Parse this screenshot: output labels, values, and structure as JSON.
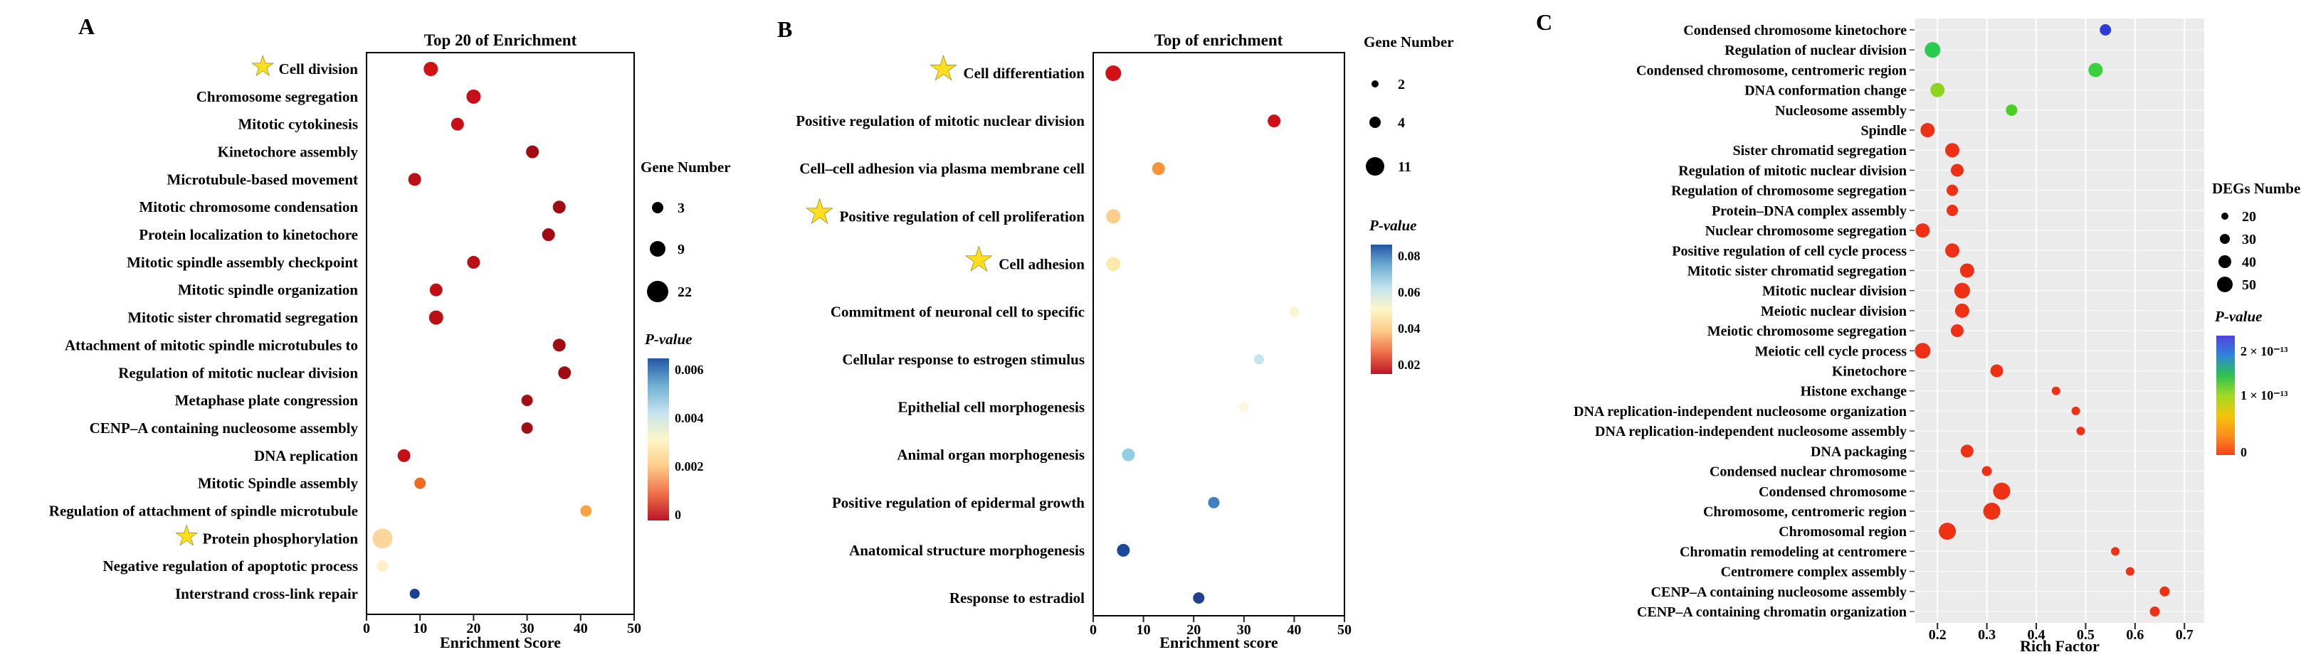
{
  "chart_data": [
    {
      "panel_label": "A",
      "type": "bubble",
      "title": "Top 20 of Enrichment",
      "xlabel": "Enrichment Score",
      "x_range": [
        0,
        50
      ],
      "x_ticks": [
        "0",
        "10",
        "20",
        "30",
        "40",
        "50"
      ],
      "size_legend": {
        "title": "Gene Number",
        "items": [
          {
            "label": "3",
            "r": 8
          },
          {
            "label": "9",
            "r": 11
          },
          {
            "label": "22",
            "r": 15
          }
        ]
      },
      "color_legend": {
        "title": "P-value",
        "ticks": [
          "0.006",
          "0.004",
          "0.002",
          "0"
        ],
        "gradient": [
          "#2356a6",
          "#6fb0d2",
          "#c3e3ee",
          "#fdf6c8",
          "#fdcc8a",
          "#f0704a",
          "#bb1526"
        ]
      },
      "points": [
        {
          "label": "Cell division",
          "star": true,
          "x": 12,
          "r": 10,
          "color": "#d01216"
        },
        {
          "label": "Chromosome segregation",
          "x": 20,
          "r": 10,
          "color": "#c60f16"
        },
        {
          "label": "Mitotic cytokinesis",
          "x": 17,
          "r": 9,
          "color": "#c60f16"
        },
        {
          "label": "Kinetochore assembly",
          "x": 31,
          "r": 9,
          "color": "#9f0d13"
        },
        {
          "label": "Microtubule-based movement",
          "x": 9,
          "r": 9,
          "color": "#b90f15"
        },
        {
          "label": "Mitotic chromosome condensation",
          "x": 36,
          "r": 9,
          "color": "#9f0d13"
        },
        {
          "label": "Protein localization to kinetochore",
          "x": 34,
          "r": 9,
          "color": "#9f0d13"
        },
        {
          "label": "Mitotic spindle assembly checkpoint",
          "x": 20,
          "r": 9,
          "color": "#b90f15"
        },
        {
          "label": "Mitotic spindle organization",
          "x": 13,
          "r": 9,
          "color": "#c00f16"
        },
        {
          "label": "Mitotic sister chromatid segregation",
          "x": 13,
          "r": 10,
          "color": "#b90f15"
        },
        {
          "label": "Attachment of mitotic spindle microtubules to",
          "x": 36,
          "r": 9,
          "color": "#9f0d13"
        },
        {
          "label": "Regulation of mitotic nuclear division",
          "x": 37,
          "r": 9,
          "color": "#9f0d13"
        },
        {
          "label": "Metaphase plate congression",
          "x": 30,
          "r": 8,
          "color": "#a50d14"
        },
        {
          "label": "CENP–A containing nucleosome assembly",
          "x": 30,
          "r": 8,
          "color": "#a50d14"
        },
        {
          "label": "DNA replication",
          "x": 7,
          "r": 9,
          "color": "#c60f16"
        },
        {
          "label": "Mitotic Spindle assembly",
          "x": 10,
          "r": 8,
          "color": "#ee6a1f"
        },
        {
          "label": "Regulation of attachment of spindle microtubule",
          "x": 41,
          "r": 8,
          "color": "#f7a440"
        },
        {
          "label": "Protein phosphorylation",
          "star": true,
          "x": 3,
          "r": 14,
          "color": "#fad69c"
        },
        {
          "label": "Negative regulation of apoptotic process",
          "x": 3,
          "r": 8,
          "color": "#fdf2c3"
        },
        {
          "label": "Interstrand cross-link repair",
          "x": 9,
          "r": 7,
          "color": "#1d3f94"
        }
      ]
    },
    {
      "panel_label": "B",
      "type": "bubble",
      "title": "Top of enrichment",
      "xlabel": "Enrichment score",
      "x_range": [
        0,
        50
      ],
      "x_ticks": [
        "0",
        "10",
        "20",
        "30",
        "40",
        "50"
      ],
      "size_legend": {
        "title": "Gene Number",
        "items": [
          {
            "label": "2",
            "r": 5
          },
          {
            "label": "4",
            "r": 8
          },
          {
            "label": "11",
            "r": 13
          }
        ]
      },
      "color_legend": {
        "title": "P-value",
        "ticks": [
          "0.08",
          "0.06",
          "0.04",
          "0.02"
        ],
        "gradient": [
          "#2356a6",
          "#6fb0d2",
          "#c3e3ee",
          "#fdf6c8",
          "#fdcc8a",
          "#f0704a",
          "#bb1526"
        ]
      },
      "points": [
        {
          "label": "Cell differentiation",
          "star": true,
          "x": 4,
          "r": 11,
          "color": "#d21117"
        },
        {
          "label": "Positive regulation of mitotic nuclear division",
          "x": 36,
          "r": 9,
          "color": "#cc1016"
        },
        {
          "label": "Cell–cell adhesion via plasma membrane cell",
          "x": 13,
          "r": 9,
          "color": "#f5933c"
        },
        {
          "label": "Positive regulation of cell proliferation",
          "star": true,
          "x": 4,
          "r": 10,
          "color": "#fbce8e"
        },
        {
          "label": "Cell adhesion",
          "star": true,
          "x": 4,
          "r": 10,
          "color": "#fde9ab"
        },
        {
          "label": "Commitment of neuronal cell to specific",
          "x": 40,
          "r": 7,
          "color": "#fdf5cd"
        },
        {
          "label": "Cellular response to estrogen stimulus",
          "x": 33,
          "r": 7,
          "color": "#c3e5ee"
        },
        {
          "label": "Epithelial cell morphogenesis",
          "x": 30,
          "r": 7,
          "color": "#fdf8dd"
        },
        {
          "label": "Animal organ morphogenesis",
          "x": 7,
          "r": 9,
          "color": "#92cde3"
        },
        {
          "label": "Positive regulation of epidermal growth",
          "x": 24,
          "r": 8,
          "color": "#3f80c0"
        },
        {
          "label": "Anatomical structure morphogenesis",
          "x": 6,
          "r": 9,
          "color": "#1c4898"
        },
        {
          "label": "Response to estradiol",
          "x": 21,
          "r": 8,
          "color": "#20418d"
        }
      ]
    },
    {
      "panel_label": "C",
      "type": "bubble",
      "title": null,
      "xlabel": "Rich Factor",
      "x_range": [
        0.155,
        0.74
      ],
      "x_ticks": [
        "0.2",
        "0.3",
        "0.4",
        "0.5",
        "0.6",
        "0.7"
      ],
      "size_legend": {
        "title": "DEGs Number",
        "items": [
          {
            "label": "20",
            "r": 5
          },
          {
            "label": "30",
            "r": 7
          },
          {
            "label": "40",
            "r": 9
          },
          {
            "label": "50",
            "r": 11
          }
        ]
      },
      "color_legend": {
        "title": "P-value",
        "ticks": [
          "2 × 10⁻¹³",
          "1 × 10⁻¹³",
          "0"
        ],
        "gradient": [
          "#5242e0",
          "#2e86d8",
          "#2fc24f",
          "#9fd927",
          "#f3c50b",
          "#fb8f1d",
          "#f4431c"
        ]
      },
      "points": [
        {
          "label": "Condensed chromosome kinetochore",
          "x": 0.54,
          "r": 8,
          "color": "#2f3bd4"
        },
        {
          "label": "Regulation of nuclear division",
          "x": 0.19,
          "r": 11,
          "color": "#29cc4e"
        },
        {
          "label": "Condensed chromosome, centromeric region",
          "x": 0.52,
          "r": 10,
          "color": "#39d039"
        },
        {
          "label": "DNA conformation change",
          "x": 0.2,
          "r": 10,
          "color": "#8ed41e"
        },
        {
          "label": "Nucleosome assembly",
          "x": 0.35,
          "r": 8,
          "color": "#49cf22"
        },
        {
          "label": "Spindle",
          "x": 0.18,
          "r": 10,
          "color": "#ee3014"
        },
        {
          "label": "Sister chromatid segregation",
          "x": 0.23,
          "r": 10,
          "color": "#ee3014"
        },
        {
          "label": "Regulation of mitotic nuclear division",
          "x": 0.24,
          "r": 9,
          "color": "#ee3014"
        },
        {
          "label": "Regulation of chromosome segregation",
          "x": 0.23,
          "r": 8,
          "color": "#ee3014"
        },
        {
          "label": "Protein–DNA complex assembly",
          "x": 0.23,
          "r": 8,
          "color": "#ee3014"
        },
        {
          "label": "Nuclear chromosome segregation",
          "x": 0.17,
          "r": 10,
          "color": "#ee3014"
        },
        {
          "label": "Positive regulation of cell cycle process",
          "x": 0.23,
          "r": 10,
          "color": "#ee3014"
        },
        {
          "label": "Mitotic sister chromatid segregation",
          "x": 0.26,
          "r": 10,
          "color": "#ee3014"
        },
        {
          "label": "Mitotic nuclear division",
          "x": 0.25,
          "r": 11,
          "color": "#ee3014"
        },
        {
          "label": "Meiotic nuclear division",
          "x": 0.25,
          "r": 10,
          "color": "#ee3014"
        },
        {
          "label": "Meiotic chromosome segregation",
          "x": 0.24,
          "r": 9,
          "color": "#ee3014"
        },
        {
          "label": "Meiotic cell cycle process",
          "x": 0.17,
          "r": 11,
          "color": "#ee3014"
        },
        {
          "label": "Kinetochore",
          "x": 0.32,
          "r": 9,
          "color": "#ee3014"
        },
        {
          "label": "Histone exchange",
          "x": 0.44,
          "r": 6,
          "color": "#ee3014"
        },
        {
          "label": "DNA replication-independent nucleosome organization",
          "x": 0.48,
          "r": 6,
          "color": "#ee3014"
        },
        {
          "label": "DNA replication-independent nucleosome assembly",
          "x": 0.49,
          "r": 6,
          "color": "#ee3014"
        },
        {
          "label": "DNA packaging",
          "x": 0.26,
          "r": 9,
          "color": "#ee3014"
        },
        {
          "label": "Condensed nuclear chromosome",
          "x": 0.3,
          "r": 7,
          "color": "#ee3014"
        },
        {
          "label": "Condensed chromosome",
          "x": 0.33,
          "r": 12,
          "color": "#ee3014"
        },
        {
          "label": "Chromosome, centromeric region",
          "x": 0.31,
          "r": 12,
          "color": "#ee3014"
        },
        {
          "label": "Chromosomal region",
          "x": 0.22,
          "r": 12,
          "color": "#ee3014"
        },
        {
          "label": "Chromatin remodeling at centromere",
          "x": 0.56,
          "r": 6,
          "color": "#ee3014"
        },
        {
          "label": "Centromere complex assembly",
          "x": 0.59,
          "r": 6,
          "color": "#ee3014"
        },
        {
          "label": "CENP–A containing nucleosome assembly",
          "x": 0.66,
          "r": 7,
          "color": "#ee3014"
        },
        {
          "label": "CENP–A containing chromatin organization",
          "x": 0.64,
          "r": 7,
          "color": "#ee3014"
        }
      ]
    }
  ]
}
